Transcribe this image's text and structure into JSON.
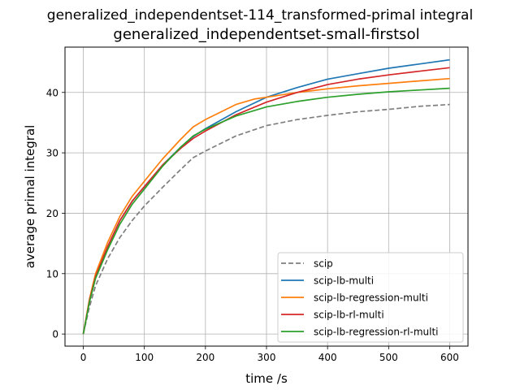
{
  "chart_data": {
    "type": "line",
    "suptitle": "generalized_independentset-114_transformed-primal integral",
    "title": "generalized_independentset-small-firstsol",
    "xlabel": "time /s",
    "ylabel": "average primal integral",
    "xlim": [
      -30,
      630
    ],
    "ylim": [
      -2,
      47.5
    ],
    "xticks": [
      0,
      100,
      200,
      300,
      400,
      500,
      600
    ],
    "yticks": [
      0,
      10,
      20,
      30,
      40
    ],
    "grid": true,
    "legend_position": "lower right",
    "series": [
      {
        "name": "scip",
        "color": "#7f7f7f",
        "dash": "dashed",
        "x": [
          0,
          10,
          20,
          40,
          60,
          80,
          100,
          130,
          160,
          180,
          200,
          250,
          300,
          350,
          400,
          450,
          500,
          550,
          600
        ],
        "y": [
          0,
          4.5,
          8.0,
          12.5,
          16.0,
          18.8,
          21.2,
          24.3,
          27.3,
          29.2,
          30.3,
          32.8,
          34.5,
          35.5,
          36.2,
          36.8,
          37.2,
          37.7,
          38.0
        ]
      },
      {
        "name": "scip-lb-multi",
        "color": "#1f77b4",
        "dash": "solid",
        "x": [
          0,
          10,
          20,
          40,
          60,
          80,
          100,
          130,
          160,
          180,
          200,
          250,
          300,
          350,
          400,
          450,
          500,
          550,
          600
        ],
        "y": [
          0,
          5.5,
          9.5,
          14.5,
          18.8,
          22.0,
          24.4,
          28.0,
          31.0,
          32.7,
          34.0,
          36.8,
          39.2,
          40.8,
          42.2,
          43.1,
          44.0,
          44.7,
          45.4
        ]
      },
      {
        "name": "scip-lb-regression-multi",
        "color": "#ff7f0e",
        "dash": "solid",
        "x": [
          0,
          10,
          20,
          40,
          60,
          80,
          100,
          130,
          160,
          180,
          200,
          250,
          280,
          300,
          350,
          400,
          450,
          500,
          550,
          600
        ],
        "y": [
          0,
          5.8,
          10.0,
          15.2,
          19.5,
          22.8,
          25.3,
          29.0,
          32.3,
          34.3,
          35.5,
          38.0,
          38.9,
          39.2,
          40.0,
          40.6,
          41.1,
          41.5,
          41.9,
          42.3
        ]
      },
      {
        "name": "scip-lb-rl-multi",
        "color": "#d62728",
        "dash": "solid",
        "x": [
          0,
          10,
          20,
          40,
          60,
          80,
          100,
          130,
          160,
          180,
          200,
          250,
          300,
          350,
          400,
          450,
          500,
          550,
          600
        ],
        "y": [
          0,
          5.5,
          9.5,
          14.5,
          18.8,
          22.0,
          24.4,
          28.0,
          30.8,
          32.4,
          33.6,
          36.3,
          38.4,
          40.0,
          41.3,
          42.2,
          42.9,
          43.5,
          44.1
        ]
      },
      {
        "name": "scip-lb-regression-rl-multi",
        "color": "#2ca02c",
        "dash": "solid",
        "x": [
          0,
          10,
          20,
          40,
          60,
          80,
          100,
          130,
          160,
          180,
          200,
          250,
          300,
          350,
          400,
          450,
          500,
          550,
          600
        ],
        "y": [
          0,
          5.3,
          9.2,
          14.0,
          18.2,
          21.5,
          24.0,
          27.8,
          31.0,
          32.8,
          33.9,
          36.1,
          37.6,
          38.5,
          39.2,
          39.7,
          40.1,
          40.4,
          40.7
        ]
      }
    ]
  }
}
